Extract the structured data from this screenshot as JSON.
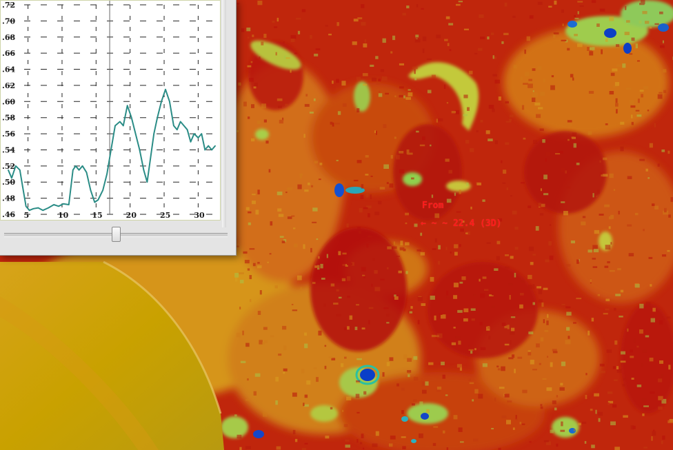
{
  "map_overlay": {
    "label_from": "From",
    "label_second_line": "← ~ ~ 22.4 (3D)"
  },
  "plot_window": {
    "slider": {
      "position_fraction": 0.5
    }
  },
  "chart_data": {
    "type": "line",
    "title": "",
    "xlabel": "",
    "ylabel": "",
    "xlim": [
      2,
      33
    ],
    "ylim": [
      0.46,
      0.72
    ],
    "x_ticks": [
      5,
      10,
      15,
      20,
      25,
      30
    ],
    "x_tick_labels": [
      "5",
      "10",
      "15",
      "20",
      "25",
      "30"
    ],
    "y_ticks": [
      0.46,
      0.48,
      0.5,
      0.52,
      0.54,
      0.56,
      0.58,
      0.6,
      0.62,
      0.64,
      0.66,
      0.68,
      0.7,
      0.72
    ],
    "y_tick_labels": [
      "0.46",
      "0.48",
      "0.50",
      "0.52",
      "0.54",
      "0.56",
      "0.58",
      "0.60",
      "0.62",
      "0.64",
      "0.66",
      "0.68",
      "0.70",
      "0.72"
    ],
    "grid": true,
    "series": [
      {
        "color": "#2a8c86",
        "x": [
          2.1,
          2.6,
          3.2,
          3.8,
          4.2,
          4.7,
          5.2,
          5.8,
          6.5,
          7.2,
          8.0,
          8.8,
          9.5,
          10.2,
          11.0,
          11.6,
          12.0,
          12.5,
          13.0,
          13.6,
          14.2,
          14.8,
          15.3,
          16.0,
          16.6,
          17.2,
          17.8,
          18.5,
          19.0,
          19.6,
          20.2,
          20.8,
          21.4,
          22.0,
          22.5,
          23.0,
          23.5,
          24.0,
          24.6,
          25.2,
          25.8,
          26.4,
          26.9,
          27.4,
          27.9,
          28.4,
          28.9,
          29.4,
          30.0,
          30.5,
          31.0,
          31.5,
          32.0,
          32.5
        ],
        "y": [
          0.515,
          0.505,
          0.52,
          0.515,
          0.495,
          0.47,
          0.465,
          0.467,
          0.468,
          0.465,
          0.468,
          0.472,
          0.47,
          0.473,
          0.472,
          0.515,
          0.52,
          0.515,
          0.52,
          0.512,
          0.49,
          0.475,
          0.478,
          0.49,
          0.51,
          0.54,
          0.57,
          0.575,
          0.57,
          0.595,
          0.58,
          0.56,
          0.54,
          0.515,
          0.5,
          0.53,
          0.56,
          0.58,
          0.6,
          0.615,
          0.6,
          0.57,
          0.565,
          0.575,
          0.57,
          0.565,
          0.55,
          0.56,
          0.555,
          0.56,
          0.54,
          0.545,
          0.54,
          0.545
        ]
      }
    ]
  }
}
